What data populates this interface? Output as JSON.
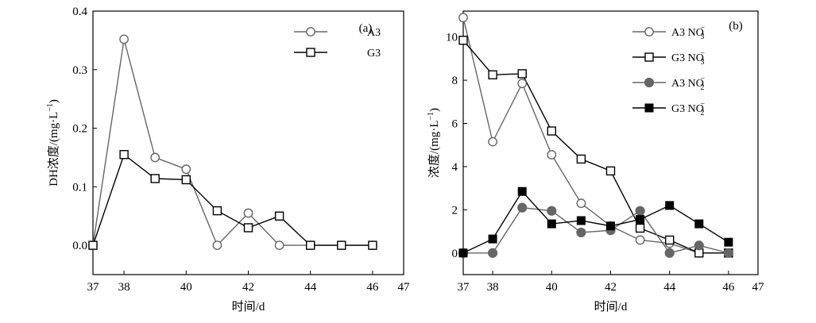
{
  "chart_data": [
    {
      "type": "line",
      "panel_label": "(a)",
      "xlabel": "时间/d",
      "ylabel": "DH浓度/(mg·L⁻¹)",
      "xlim": [
        37,
        47
      ],
      "ylim": [
        -0.05,
        0.4
      ],
      "xticks": [
        37,
        38,
        40,
        42,
        44,
        46,
        47
      ],
      "yticks": [
        0.0,
        0.1,
        0.2,
        0.3,
        0.4
      ],
      "ytick_labels": [
        "0.0",
        "0.1",
        "0.2",
        "0.3",
        "0.4"
      ],
      "legend_position": "top-right",
      "series": [
        {
          "name": "A3",
          "marker": "open-circle",
          "color": "#666666",
          "x": [
            37,
            38,
            39,
            40,
            41,
            42,
            43,
            44,
            45,
            46
          ],
          "y": [
            0.0,
            0.352,
            0.15,
            0.13,
            0.0,
            0.055,
            0.0,
            0.0,
            0.0,
            0.0
          ]
        },
        {
          "name": "G3",
          "marker": "open-square",
          "color": "#000000",
          "x": [
            37,
            38,
            39,
            40,
            41,
            42,
            43,
            44,
            45,
            46
          ],
          "y": [
            0.0,
            0.155,
            0.114,
            0.112,
            0.059,
            0.03,
            0.05,
            0.0,
            0.0,
            0.0
          ]
        }
      ]
    },
    {
      "type": "line",
      "panel_label": "(b)",
      "xlabel": "时间/d",
      "ylabel": "浓度/(mg·L⁻¹)",
      "xlim": [
        37,
        47
      ],
      "ylim": [
        -1,
        11.2
      ],
      "xticks": [
        37,
        38,
        40,
        42,
        44,
        46,
        47
      ],
      "yticks": [
        0,
        2,
        4,
        6,
        8,
        10
      ],
      "ytick_labels": [
        "0",
        "2",
        "4",
        "6",
        "8",
        "10"
      ],
      "legend_position": "top-right",
      "series": [
        {
          "name": "A3 NO₃⁻",
          "marker": "open-circle",
          "color": "#666666",
          "x": [
            37,
            38,
            39,
            40,
            41,
            42,
            43,
            44,
            45,
            46
          ],
          "y": [
            10.9,
            5.15,
            7.85,
            4.55,
            2.3,
            1.25,
            0.6,
            0.45,
            0.0,
            0.0
          ]
        },
        {
          "name": "G3 NO₃⁻",
          "marker": "open-square",
          "color": "#000000",
          "x": [
            37,
            38,
            39,
            40,
            41,
            42,
            43,
            44,
            45,
            46
          ],
          "y": [
            9.85,
            8.25,
            8.3,
            5.65,
            4.35,
            3.8,
            1.15,
            0.6,
            0.0,
            0.0
          ]
        },
        {
          "name": "A3 NO₂⁻",
          "marker": "filled-circle",
          "color": "#666666",
          "x": [
            37,
            38,
            39,
            40,
            41,
            42,
            43,
            44,
            45,
            46
          ],
          "y": [
            0.0,
            0.0,
            2.1,
            1.95,
            0.95,
            1.05,
            1.95,
            0.0,
            0.35,
            0.0
          ]
        },
        {
          "name": "G3 NO₂⁻",
          "marker": "filled-square",
          "color": "#000000",
          "x": [
            37,
            38,
            39,
            40,
            41,
            42,
            43,
            44,
            45,
            46
          ],
          "y": [
            0.0,
            0.65,
            2.85,
            1.35,
            1.5,
            1.25,
            1.55,
            2.2,
            1.35,
            0.5
          ]
        }
      ]
    }
  ]
}
